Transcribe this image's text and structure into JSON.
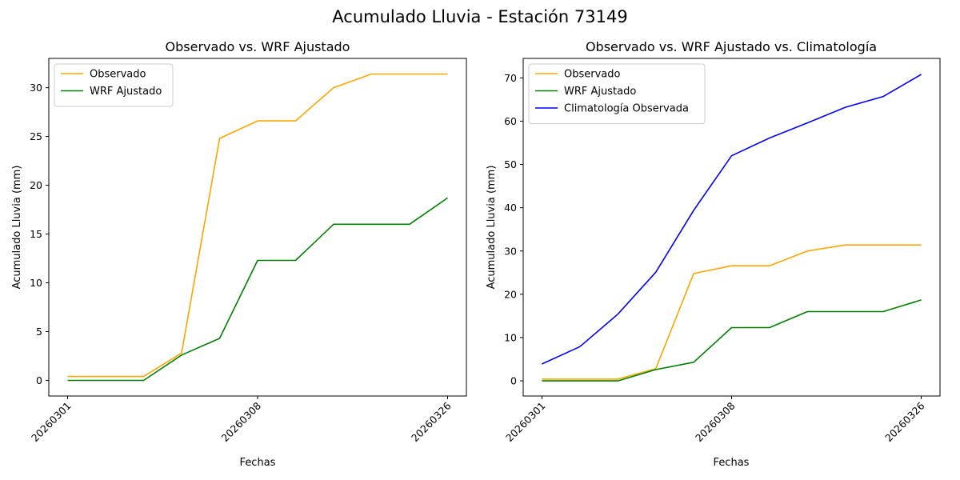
{
  "figure_title": "Acumulado Lluvia - Estación 73149",
  "colors": {
    "Observado": "#ffa500",
    "WRF Ajustado": "#008000",
    "Climatología Observada": "#0000ff"
  },
  "chart_data": [
    {
      "type": "line",
      "title": "Observado vs. WRF Ajustado",
      "xlabel": "Fechas",
      "ylabel": "Acumulado Lluvia (mm)",
      "x_ticks": [
        "20260301",
        "20260308",
        "20260326"
      ],
      "ylim": [
        -1.6,
        33
      ],
      "y_ticks": [
        0,
        5,
        10,
        15,
        20,
        25,
        30
      ],
      "legend_position": "upper-left",
      "grid": false,
      "series": [
        {
          "name": "Observado",
          "color": "#ffa500",
          "values": [
            0.4,
            0.4,
            0.4,
            2.8,
            24.8,
            26.6,
            26.6,
            30.0,
            31.4,
            31.4,
            31.4
          ]
        },
        {
          "name": "WRF Ajustado",
          "color": "#008000",
          "values": [
            0.0,
            0.0,
            0.0,
            2.6,
            4.3,
            12.3,
            12.3,
            16.0,
            16.0,
            16.0,
            18.7
          ]
        }
      ]
    },
    {
      "type": "line",
      "title": "Observado vs. WRF Ajustado vs. Climatología",
      "xlabel": "Fechas",
      "ylabel": "Acumulado Lluvia (mm)",
      "x_ticks": [
        "20260301",
        "20260308",
        "20260326"
      ],
      "ylim": [
        -3.5,
        74.5
      ],
      "y_ticks": [
        0,
        10,
        20,
        30,
        40,
        50,
        60,
        70
      ],
      "legend_position": "upper-left",
      "grid": false,
      "series": [
        {
          "name": "Observado",
          "color": "#ffa500",
          "values": [
            0.4,
            0.4,
            0.4,
            2.8,
            24.8,
            26.6,
            26.6,
            30.0,
            31.4,
            31.4,
            31.4
          ]
        },
        {
          "name": "WRF Ajustado",
          "color": "#008000",
          "values": [
            0.0,
            0.0,
            0.0,
            2.6,
            4.3,
            12.3,
            12.3,
            16.0,
            16.0,
            16.0,
            18.7
          ]
        },
        {
          "name": "Climatología Observada",
          "color": "#0000ff",
          "values": [
            3.9,
            7.9,
            15.4,
            25.1,
            39.4,
            52.0,
            56.1,
            59.6,
            63.2,
            65.7,
            70.8
          ]
        }
      ]
    }
  ]
}
